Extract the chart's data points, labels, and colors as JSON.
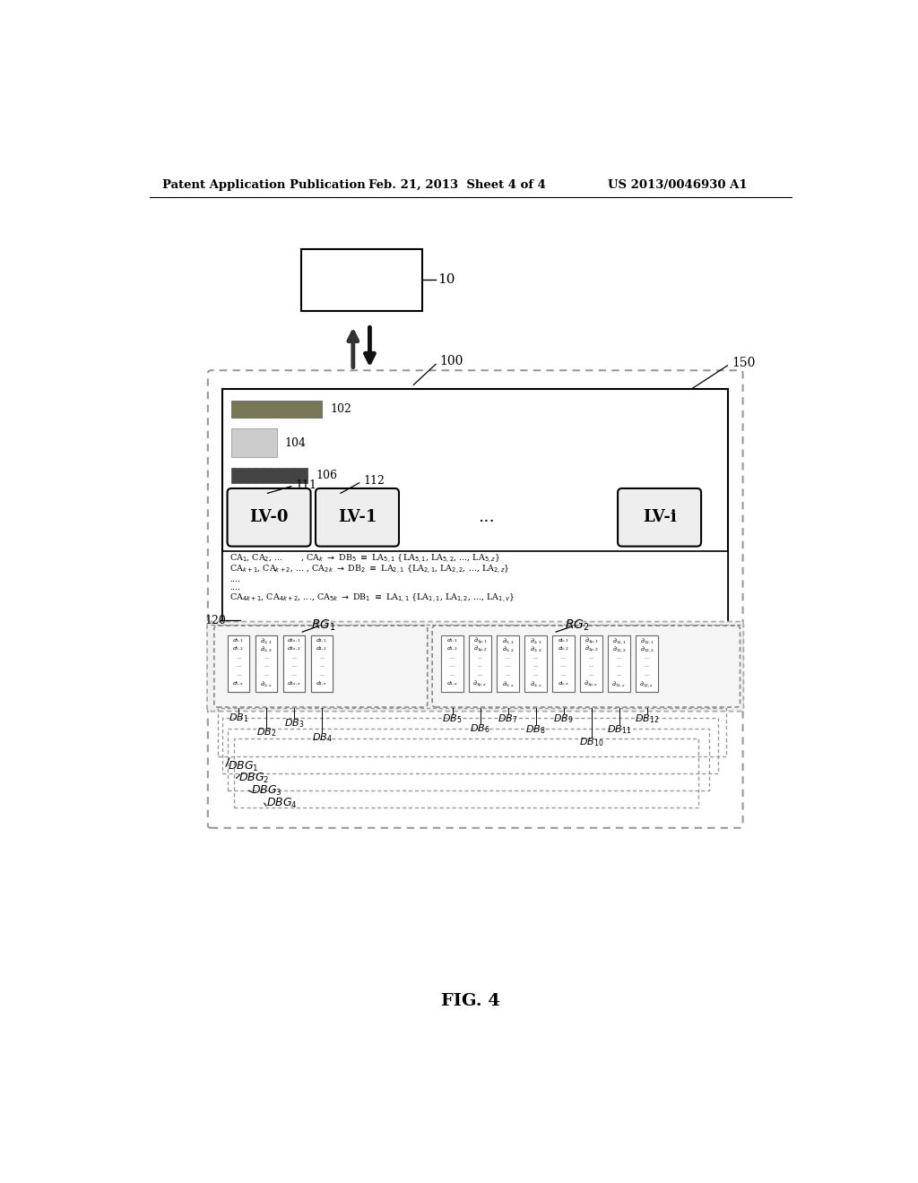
{
  "bg_color": "#ffffff",
  "header_left": "Patent Application Publication",
  "header_mid": "Feb. 21, 2013  Sheet 4 of 4",
  "header_right": "US 2013/0046930 A1",
  "footer": "FIG. 4",
  "label_10": "10",
  "label_100": "100",
  "label_150": "150",
  "label_102": "102",
  "label_104": "104",
  "label_106": "106",
  "label_111": "111",
  "label_112": "112",
  "label_120": "120",
  "label_RG1": "RG",
  "label_RG1_sub": "1",
  "label_RG2": "RG",
  "label_RG2_sub": "2",
  "label_DB1": "DB",
  "sub_DB1": "1",
  "label_DB2": "DB",
  "sub_DB2": "2",
  "label_DB3": "DB",
  "sub_DB3": "3",
  "label_DB4": "DB",
  "sub_DB4": "4",
  "label_DB5": "DB",
  "sub_DB5": "5",
  "label_DB6": "DB",
  "sub_DB6": "6",
  "label_DB7": "DB",
  "sub_DB7": "7",
  "label_DB8": "DB",
  "sub_DB8": "8",
  "label_DB9": "DB",
  "sub_DB9": "9",
  "label_DB10": "DB",
  "sub_DB10": "10",
  "label_DB11": "DB",
  "sub_DB11": "11",
  "label_DB12": "DB",
  "sub_DB12": "12",
  "label_DBG1": "DBG",
  "sub_DBG1": "1",
  "label_DBG2": "DBG",
  "sub_DBG2": "2",
  "label_DBG3": "DBG",
  "sub_DBG3": "3",
  "label_DBG4": "DBG",
  "sub_DBG4": "4",
  "lv_boxes": [
    "LV-0",
    "LV-1",
    "...",
    "LV-i"
  ],
  "text_line1a": "CA",
  "text_line1b": "1",
  "text_line2a": "....",
  "text_line3a": "....",
  "ellipsis": "..."
}
